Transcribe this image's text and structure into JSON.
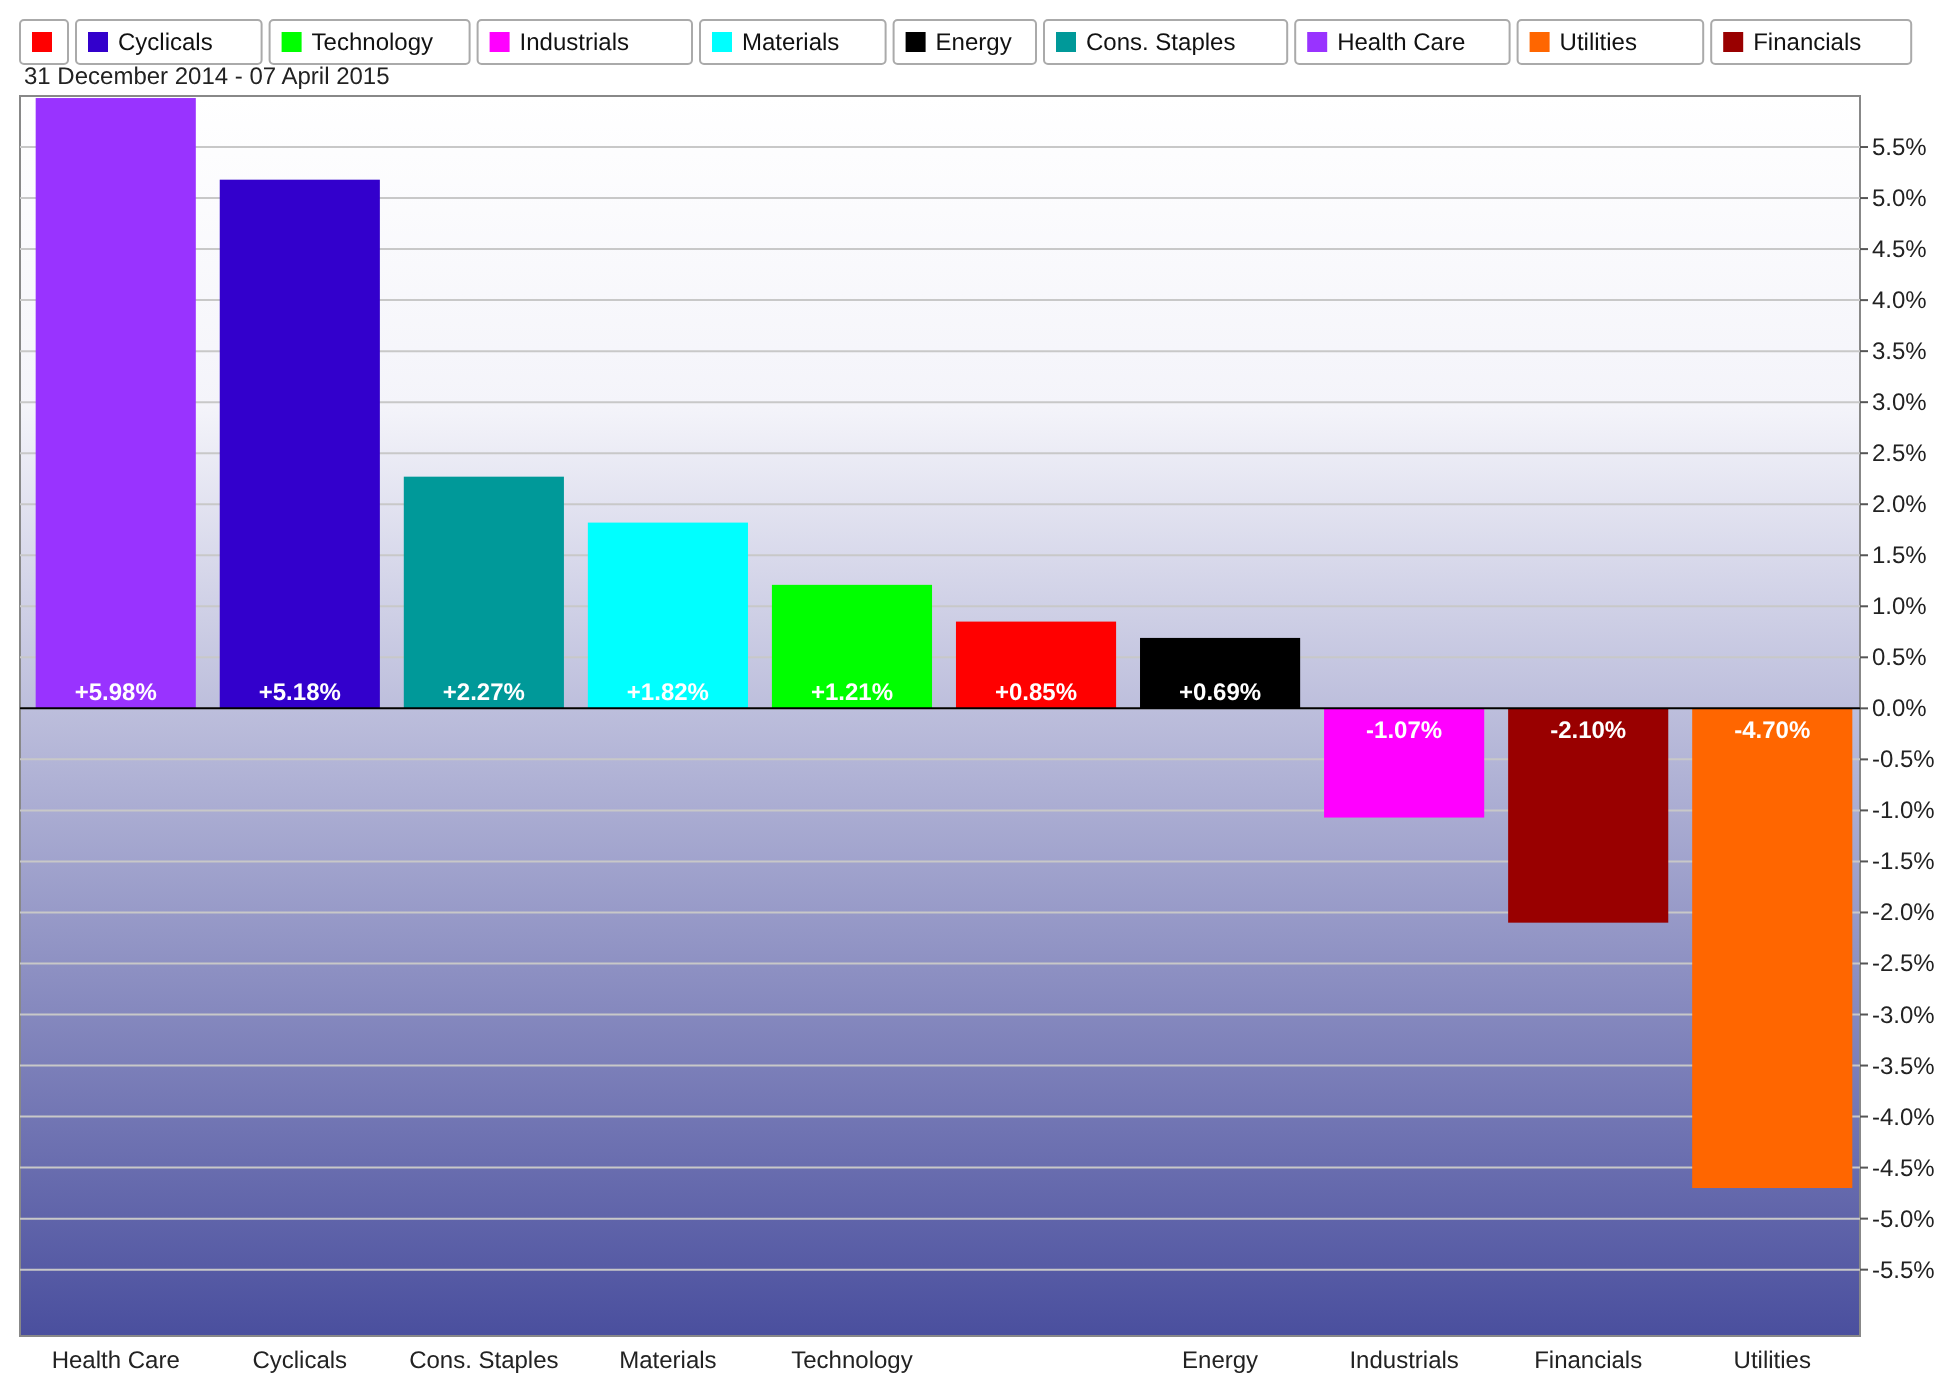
{
  "chart_data": {
    "type": "bar",
    "subtitle": "31 December 2014 - 07 April 2015",
    "categories": [
      "Health Care",
      "Cyclicals",
      "Cons. Staples",
      "Materials",
      "Technology",
      null,
      "Energy",
      "Industrials",
      "Financials",
      "Utilities"
    ],
    "stacked": true,
    "series": [
      {
        "color": "#ff0000",
        "values": [
          null,
          null,
          null,
          null,
          null,
          0.85,
          null,
          null,
          null,
          null
        ],
        "value_labels": [
          null,
          null,
          null,
          null,
          null,
          "+0.85%",
          null,
          null,
          null,
          null
        ]
      },
      {
        "name": "Cyclicals",
        "color": "#3300cc",
        "values": [
          null,
          5.18,
          null,
          null,
          null,
          null,
          null,
          null,
          null,
          null
        ],
        "value_labels": [
          null,
          "+5.18%",
          null,
          null,
          null,
          null,
          null,
          null,
          null,
          null
        ]
      },
      {
        "name": "Technology",
        "color": "#00ff00",
        "values": [
          null,
          null,
          null,
          null,
          1.21,
          null,
          null,
          null,
          null,
          null
        ],
        "value_labels": [
          null,
          null,
          null,
          null,
          "+1.21%",
          null,
          null,
          null,
          null,
          null
        ]
      },
      {
        "name": "Industrials",
        "color": "#ff00ff",
        "values": [
          null,
          null,
          null,
          null,
          null,
          null,
          null,
          -1.07,
          null,
          null
        ],
        "value_labels": [
          null,
          null,
          null,
          null,
          null,
          null,
          null,
          "-1.07%",
          null,
          null
        ]
      },
      {
        "name": "Materials",
        "color": "#00ffff",
        "values": [
          null,
          null,
          null,
          1.82,
          null,
          null,
          null,
          null,
          null,
          null
        ],
        "value_labels": [
          null,
          null,
          null,
          "+1.82%",
          null,
          null,
          null,
          null,
          null,
          null
        ]
      },
      {
        "name": "Energy",
        "color": "#000000",
        "values": [
          null,
          null,
          null,
          null,
          null,
          null,
          0.69,
          null,
          null,
          null
        ],
        "value_labels": [
          null,
          null,
          null,
          null,
          null,
          null,
          "+0.69%",
          null,
          null,
          null
        ]
      },
      {
        "name": "Cons. Staples",
        "color": "#009999",
        "values": [
          null,
          null,
          2.27,
          null,
          null,
          null,
          null,
          null,
          null,
          null
        ],
        "value_labels": [
          null,
          null,
          "+2.27%",
          null,
          null,
          null,
          null,
          null,
          null,
          null
        ]
      },
      {
        "name": "Health Care",
        "color": "#9933ff",
        "values": [
          5.98,
          null,
          null,
          null,
          null,
          null,
          null,
          null,
          null,
          null
        ],
        "value_labels": [
          "+5.98%",
          null,
          null,
          null,
          null,
          null,
          null,
          null,
          null,
          null
        ]
      },
      {
        "name": "Utilities",
        "color": "#ff6600",
        "values": [
          null,
          null,
          null,
          null,
          null,
          null,
          null,
          null,
          null,
          -4.7
        ],
        "value_labels": [
          null,
          null,
          null,
          null,
          null,
          null,
          null,
          null,
          null,
          "-4.70%"
        ]
      },
      {
        "name": "Financials",
        "color": "#990000",
        "values": [
          null,
          null,
          null,
          null,
          null,
          null,
          null,
          null,
          -2.1,
          null
        ],
        "value_labels": [
          null,
          null,
          null,
          null,
          null,
          null,
          null,
          null,
          "-2.10%",
          null
        ]
      }
    ],
    "ylim": [
      -6.15,
      6.0
    ],
    "yticks": [
      {
        "value": 5.5,
        "label": "5.5%"
      },
      {
        "value": 5,
        "label": "5.0%"
      },
      {
        "value": 4.5,
        "label": "4.5%"
      },
      {
        "value": 4,
        "label": "4.0%"
      },
      {
        "value": 3.5,
        "label": "3.5%"
      },
      {
        "value": 3,
        "label": "3.0%"
      },
      {
        "value": 2.5,
        "label": "2.5%"
      },
      {
        "value": 2,
        "label": "2.0%"
      },
      {
        "value": 1.5,
        "label": "1.5%"
      },
      {
        "value": 1,
        "label": "1.0%"
      },
      {
        "value": 0.5,
        "label": "0.5%"
      },
      {
        "value": 0,
        "label": "0.0%"
      },
      {
        "value": -0.5,
        "label": "-0.5%"
      },
      {
        "value": -1,
        "label": "-1.0%"
      },
      {
        "value": -1.5,
        "label": "-1.5%"
      },
      {
        "value": -2,
        "label": "-2.0%"
      },
      {
        "value": -2.5,
        "label": "-2.5%"
      },
      {
        "value": -3,
        "label": "-3.0%"
      },
      {
        "value": -3.5,
        "label": "-3.5%"
      },
      {
        "value": -4,
        "label": "-4.0%"
      },
      {
        "value": -4.5,
        "label": "-4.5%"
      },
      {
        "value": -5,
        "label": "-5.0%"
      },
      {
        "value": -5.5,
        "label": "-5.5%"
      }
    ],
    "grid": "y",
    "legend": "top"
  }
}
